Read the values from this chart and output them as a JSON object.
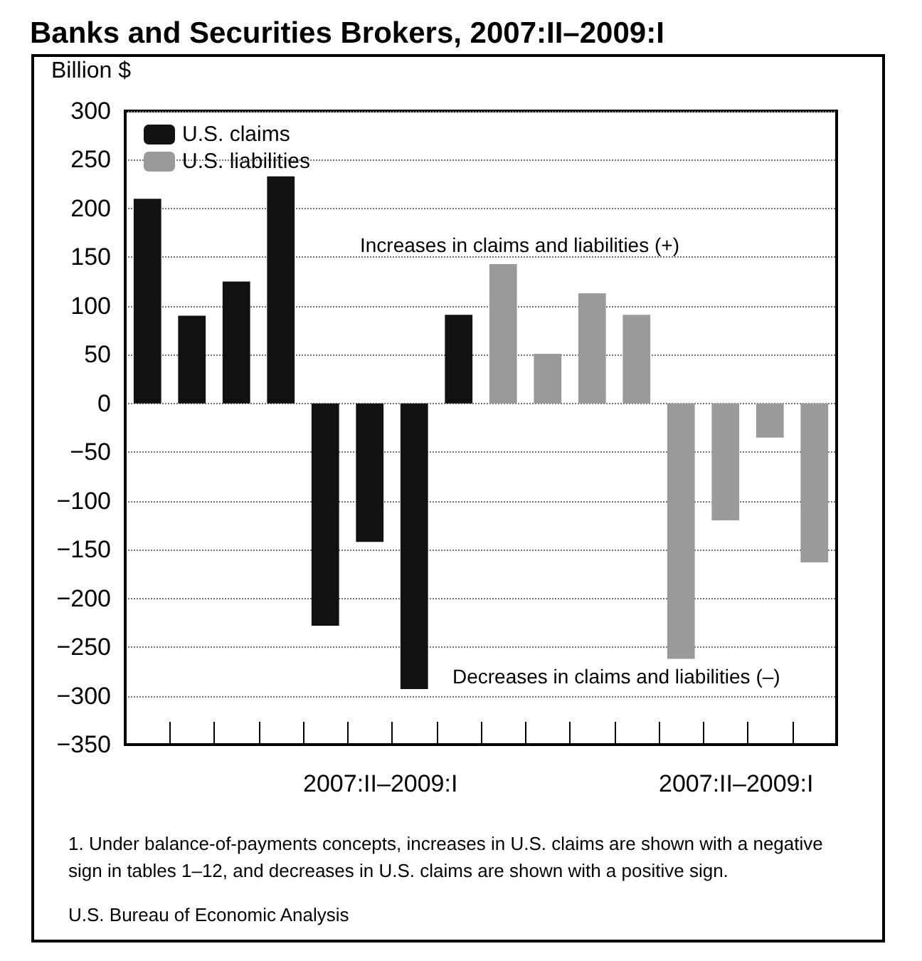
{
  "chart_data": {
    "type": "bar",
    "title": "Banks and Securities Brokers, 2007:II–2009:I",
    "ylabel": "Billion $",
    "categories": [
      null,
      null,
      null,
      null,
      null,
      null,
      null,
      null,
      null,
      null,
      null,
      null,
      null,
      null,
      null,
      null
    ],
    "series": [
      {
        "name": "U.S. claims",
        "color": "#111111",
        "values": [
          210,
          90,
          125,
          233,
          -228,
          -142,
          -293,
          91,
          null,
          null,
          null,
          null,
          null,
          null,
          null,
          null
        ]
      },
      {
        "name": "U.S. liabilities",
        "color": "#9a9a9a",
        "values": [
          null,
          null,
          null,
          null,
          null,
          null,
          null,
          null,
          143,
          51,
          113,
          91,
          -262,
          -120,
          -35,
          -163
        ]
      }
    ],
    "ylim": [
      -350,
      300
    ],
    "yticks": [
      -350,
      -300,
      -250,
      -200,
      -150,
      -100,
      -50,
      0,
      50,
      100,
      150,
      200,
      250,
      300
    ],
    "grid": "y",
    "legend": "top left",
    "annotations": [
      "Increases in claims and liabilities (+)",
      "Decreases in claims and liabilities (–)",
      "2007:II–2009:I",
      "2007:II–2009:I",
      "1. Under balance-of-payments concepts, increases in U.S. claims are shown with a negative sign in tables 1–12, and decreases in U.S. claims are shown with a positive sign.",
      "U.S. Bureau of Economic Analysis"
    ]
  }
}
